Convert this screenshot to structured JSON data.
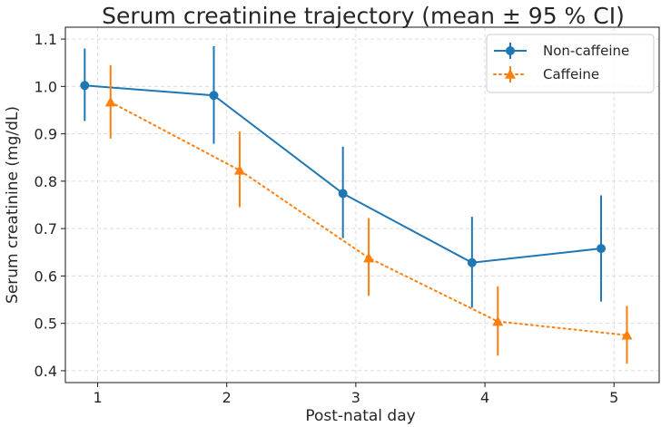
{
  "chart_data": {
    "type": "line",
    "title": "Serum creatinine trajectory (mean ± 95 % CI)",
    "xlabel": "Post-natal day",
    "ylabel": "Serum creatinine (mg/dL)",
    "xlim": [
      0.75,
      5.35
    ],
    "ylim": [
      0.375,
      1.125
    ],
    "xticks": [
      1,
      2,
      3,
      4,
      5
    ],
    "yticks": [
      0.4,
      0.5,
      0.6,
      0.7,
      0.8,
      0.9,
      1.0,
      1.1
    ],
    "grid": true,
    "legend_position": "top-right",
    "series": [
      {
        "name": "Non-caffeine",
        "color": "#1f77b4",
        "line_style": "solid",
        "marker": "circle",
        "x": [
          0.9,
          1.9,
          2.9,
          3.9,
          4.9
        ],
        "y": [
          1.002,
          0.981,
          0.774,
          0.628,
          0.658
        ],
        "ci_low": [
          0.927,
          0.879,
          0.68,
          0.533,
          0.546
        ],
        "ci_high": [
          1.08,
          1.085,
          0.873,
          0.725,
          0.77
        ]
      },
      {
        "name": "Caffeine",
        "color": "#ff7f0e",
        "line_style": "dotted",
        "marker": "triangle",
        "x": [
          1.1,
          2.1,
          3.1,
          4.1,
          5.1
        ],
        "y": [
          0.967,
          0.823,
          0.638,
          0.504,
          0.475
        ],
        "ci_low": [
          0.89,
          0.745,
          0.558,
          0.432,
          0.415
        ],
        "ci_high": [
          1.045,
          0.905,
          0.722,
          0.578,
          0.537
        ]
      }
    ]
  }
}
